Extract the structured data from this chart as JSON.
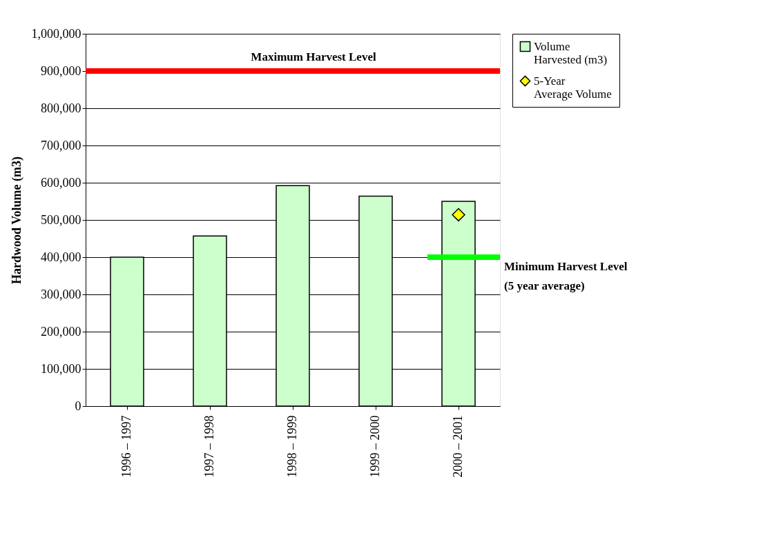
{
  "chart_data": {
    "type": "bar",
    "ylabel": "Hardwood Volume (m3)",
    "categories": [
      "1996 – 1997",
      "1997 – 1998",
      "1998 – 1999",
      "1999 – 2000",
      "2000 – 2001"
    ],
    "series": [
      {
        "name": "Volume Harvested (m3)",
        "color": "#ccffcc",
        "values": [
          400000,
          457000,
          592000,
          564000,
          550000
        ]
      },
      {
        "name": "5-Year Average Volume",
        "type": "line",
        "color": "#ffff00",
        "marker": "diamond",
        "values": [
          null,
          null,
          null,
          null,
          514000
        ]
      }
    ],
    "ylim": [
      0,
      1000000
    ],
    "yticks": [
      0,
      {
        "value": 100000,
        "label": "100,000"
      },
      {
        "value": 200000,
        "label": "200,000"
      },
      {
        "value": 300000,
        "label": "300,000"
      },
      {
        "value": 400000,
        "label": "400,000"
      },
      {
        "value": 500000,
        "label": "500,000"
      },
      {
        "value": 600000,
        "label": "600,000"
      },
      {
        "value": 700000,
        "label": "700,000"
      },
      {
        "value": 800000,
        "label": "800,000"
      },
      {
        "value": 900000,
        "label": "900,000"
      },
      {
        "value": 1000000,
        "label": "1,000,000"
      }
    ],
    "grid": "y",
    "legend": "right",
    "ref_lines": [
      {
        "axis": "y",
        "value": 900000,
        "label": "Maximum Harvest Level",
        "color": "#ff0000"
      },
      {
        "axis": "y",
        "value": 400000,
        "label": "Minimum Harvest Level\n(5 year average)",
        "color": "#00ff00"
      }
    ]
  }
}
